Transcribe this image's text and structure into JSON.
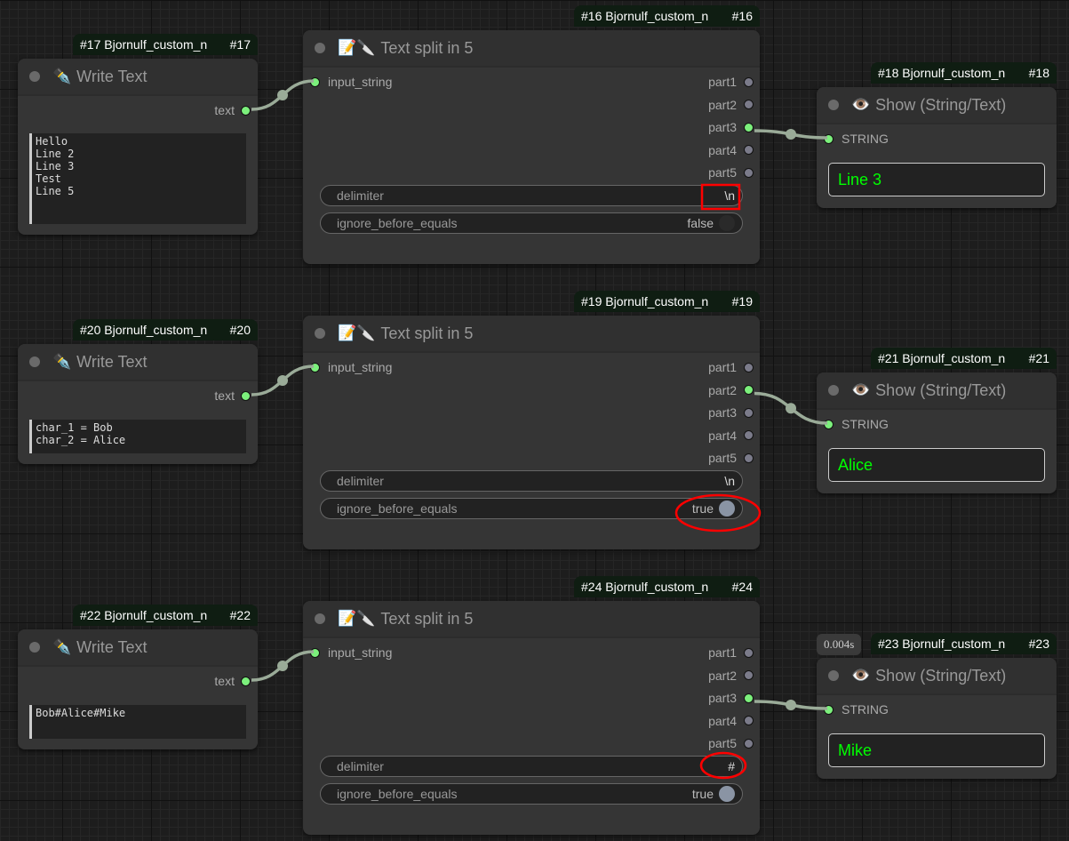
{
  "colors": {
    "connected_slot": "#7cf07c",
    "output_text": "#00ff00",
    "badge_bg": "#0f1d12",
    "annotation": "#ff0000"
  },
  "rows": [
    {
      "write": {
        "badge_left": "#17 Bjornulf_custom_n",
        "badge_right": "#17",
        "icon": "fountain-pen-icon",
        "title": "Write Text",
        "output": "text",
        "text": "Hello\nLine 2\nLine 3\nTest\nLine 5"
      },
      "split": {
        "badge_left": "#16 Bjornulf_custom_n",
        "badge_right": "#16",
        "icon": "memo-knife-icon",
        "title": "Text split in 5",
        "input": "input_string",
        "outputs": [
          "part1",
          "part2",
          "part3",
          "part4",
          "part5"
        ],
        "connected_output": 2,
        "delimiter_label": "delimiter",
        "delimiter": "\\n",
        "ignore_label": "ignore_before_equals",
        "ignore": "false",
        "ignore_on": false
      },
      "show": {
        "badge_left": "#18 Bjornulf_custom_n",
        "badge_right": "#18",
        "icon": "eye-icon",
        "title": "Show (String/Text)",
        "input": "STRING",
        "value": "Line 3"
      }
    },
    {
      "write": {
        "badge_left": "#20 Bjornulf_custom_n",
        "badge_right": "#20",
        "icon": "fountain-pen-icon",
        "title": "Write Text",
        "output": "text",
        "text": "char_1 = Bob\nchar_2 = Alice"
      },
      "split": {
        "badge_left": "#19 Bjornulf_custom_n",
        "badge_right": "#19",
        "icon": "memo-knife-icon",
        "title": "Text split in 5",
        "input": "input_string",
        "outputs": [
          "part1",
          "part2",
          "part3",
          "part4",
          "part5"
        ],
        "connected_output": 1,
        "delimiter_label": "delimiter",
        "delimiter": "\\n",
        "ignore_label": "ignore_before_equals",
        "ignore": "true",
        "ignore_on": true
      },
      "show": {
        "badge_left": "#21 Bjornulf_custom_n",
        "badge_right": "#21",
        "icon": "eye-icon",
        "title": "Show (String/Text)",
        "input": "STRING",
        "value": "Alice"
      }
    },
    {
      "write": {
        "badge_left": "#22 Bjornulf_custom_n",
        "badge_right": "#22",
        "icon": "fountain-pen-icon",
        "title": "Write Text",
        "output": "text",
        "text": "Bob#Alice#Mike"
      },
      "split": {
        "badge_left": "#24 Bjornulf_custom_n",
        "badge_right": "#24",
        "icon": "memo-knife-icon",
        "title": "Text split in 5",
        "input": "input_string",
        "outputs": [
          "part1",
          "part2",
          "part3",
          "part4",
          "part5"
        ],
        "connected_output": 2,
        "delimiter_label": "delimiter",
        "delimiter": "#",
        "ignore_label": "ignore_before_equals",
        "ignore": "true",
        "ignore_on": true
      },
      "show": {
        "badge_left": "#23 Bjornulf_custom_n",
        "badge_right": "#23",
        "icon": "eye-icon",
        "title": "Show (String/Text)",
        "input": "STRING",
        "value": "Mike",
        "exec_time": "0.004s"
      }
    }
  ]
}
